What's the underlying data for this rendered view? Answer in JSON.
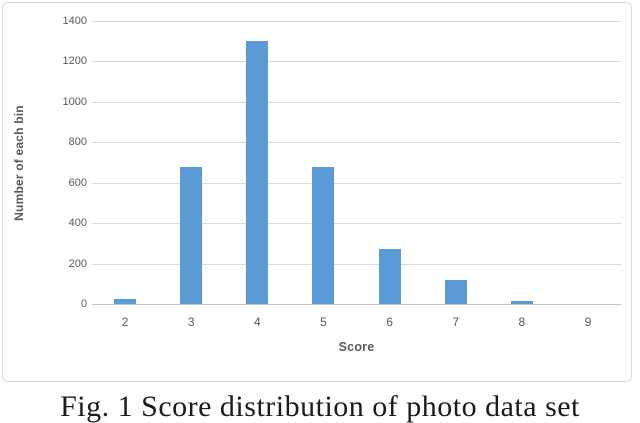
{
  "figure": {
    "caption": "Fig. 1 Score distribution of photo data set"
  },
  "chart_data": {
    "type": "bar",
    "title": "",
    "categories": [
      "2",
      "3",
      "4",
      "5",
      "6",
      "7",
      "8",
      "9"
    ],
    "values": [
      25,
      680,
      1300,
      680,
      270,
      120,
      15,
      0
    ],
    "xlabel": "Score",
    "ylabel": "Number of each bin",
    "ylim": [
      0,
      1400
    ],
    "yticks": [
      0,
      200,
      400,
      600,
      800,
      1000,
      1200,
      1400
    ],
    "grid": true,
    "legend": false,
    "colors": {
      "bar": "#5b9bd5",
      "gridline": "#d9d9d9",
      "axis_line": "#c6c6c6",
      "tick_label": "#595959",
      "axis_title": "#595959",
      "chart_border": "#d9d9d9"
    }
  }
}
